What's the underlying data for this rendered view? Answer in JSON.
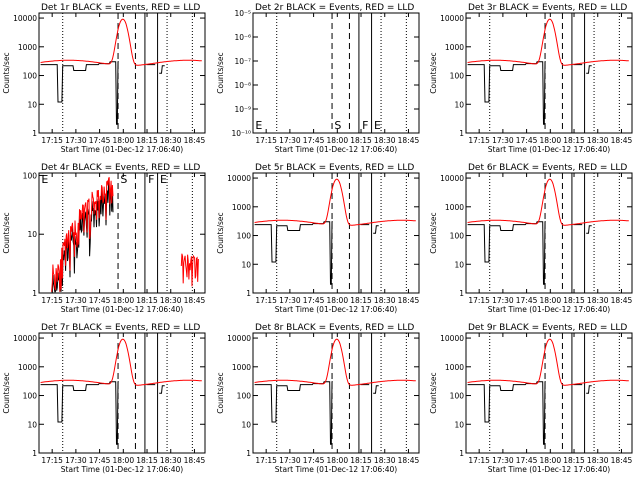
{
  "colors": {
    "events": "#000000",
    "lld": "#ff0000",
    "background": "#ffffff"
  },
  "chart_data": [
    {
      "type": "line",
      "title": "Det 1r BLACK = Events, RED = LLD",
      "xlabel": "Start Time (01-Dec-12 17:06:40)",
      "ylabel": "Counts/sec",
      "yscale": "log",
      "ylim": [
        1,
        15000
      ],
      "y_ticks": [
        "1",
        "10",
        "100",
        "1000",
        "10000"
      ],
      "x_ticks": [
        "17:15",
        "17:30",
        "17:45",
        "18:00",
        "18:15",
        "18:30",
        "18:45"
      ],
      "flags": [],
      "profile": "normal"
    },
    {
      "type": "line",
      "title": "Det 2r BLACK = Events, RED = LLD",
      "xlabel": "Start Time (01-Dec-12 17:06:40)",
      "ylabel": "Counts/sec",
      "yscale": "log",
      "ylim": [
        1e-10,
        1e-05
      ],
      "y_ticks": [
        "10⁻¹⁰",
        "10⁻⁹",
        "10⁻⁸",
        "10⁻⁷",
        "10⁻⁶",
        "10⁻⁵"
      ],
      "x_ticks": [
        "17:15",
        "17:30",
        "17:45",
        "18:00",
        "18:15",
        "18:30",
        "18:45"
      ],
      "flags": [
        "E",
        "S",
        "F",
        "E"
      ],
      "profile": "empty"
    },
    {
      "type": "line",
      "title": "Det 3r BLACK = Events, RED = LLD",
      "xlabel": "Start Time (01-Dec-12 17:06:40)",
      "ylabel": "Counts/sec",
      "yscale": "log",
      "ylim": [
        1,
        15000
      ],
      "y_ticks": [
        "1",
        "10",
        "100",
        "1000",
        "10000"
      ],
      "x_ticks": [
        "17:15",
        "17:30",
        "17:45",
        "18:00",
        "18:15",
        "18:30",
        "18:45"
      ],
      "flags": [],
      "profile": "normal"
    },
    {
      "type": "line",
      "title": "Det 4r BLACK = Events, RED = LLD",
      "xlabel": "Start Time (01-Dec-12 17:06:40)",
      "ylabel": "Counts/sec",
      "yscale": "log",
      "ylim": [
        1,
        110
      ],
      "y_ticks": [
        "1",
        "10",
        "100"
      ],
      "x_ticks": [
        "17:15",
        "17:30",
        "17:45",
        "18:00",
        "18:15",
        "18:30",
        "18:45"
      ],
      "flags": [
        "E",
        "S",
        "F",
        "E"
      ],
      "profile": "noisy"
    },
    {
      "type": "line",
      "title": "Det 5r BLACK = Events, RED = LLD",
      "xlabel": "Start Time (01-Dec-12 17:06:40)",
      "ylabel": "Counts/sec",
      "yscale": "log",
      "ylim": [
        1,
        15000
      ],
      "y_ticks": [
        "1",
        "10",
        "100",
        "1000",
        "10000"
      ],
      "x_ticks": [
        "17:15",
        "17:30",
        "17:45",
        "18:00",
        "18:15",
        "18:30",
        "18:45"
      ],
      "flags": [],
      "profile": "normal"
    },
    {
      "type": "line",
      "title": "Det 6r BLACK = Events, RED = LLD",
      "xlabel": "Start Time (01-Dec-12 17:06:40)",
      "ylabel": "Counts/sec",
      "yscale": "log",
      "ylim": [
        1,
        15000
      ],
      "y_ticks": [
        "1",
        "10",
        "100",
        "1000",
        "10000"
      ],
      "x_ticks": [
        "17:15",
        "17:30",
        "17:45",
        "18:00",
        "18:15",
        "18:30",
        "18:45"
      ],
      "flags": [],
      "profile": "normal"
    },
    {
      "type": "line",
      "title": "Det 7r BLACK = Events, RED = LLD",
      "xlabel": "Start Time (01-Dec-12 17:06:40)",
      "ylabel": "Counts/sec",
      "yscale": "log",
      "ylim": [
        1,
        15000
      ],
      "y_ticks": [
        "1",
        "10",
        "100",
        "1000",
        "10000"
      ],
      "x_ticks": [
        "17:15",
        "17:30",
        "17:45",
        "18:00",
        "18:15",
        "18:30",
        "18:45"
      ],
      "flags": [],
      "profile": "normal"
    },
    {
      "type": "line",
      "title": "Det 8r BLACK = Events, RED = LLD",
      "xlabel": "Start Time (01-Dec-12 17:06:40)",
      "ylabel": "Counts/sec",
      "yscale": "log",
      "ylim": [
        1,
        15000
      ],
      "y_ticks": [
        "1",
        "10",
        "100",
        "1000",
        "10000"
      ],
      "x_ticks": [
        "17:15",
        "17:30",
        "17:45",
        "18:00",
        "18:15",
        "18:30",
        "18:45"
      ],
      "flags": [],
      "profile": "normal"
    },
    {
      "type": "line",
      "title": "Det 9r BLACK = Events, RED = LLD",
      "xlabel": "Start Time (01-Dec-12 17:06:40)",
      "ylabel": "Counts/sec",
      "yscale": "log",
      "ylim": [
        1,
        15000
      ],
      "y_ticks": [
        "1",
        "10",
        "100",
        "1000",
        "10000"
      ],
      "x_ticks": [
        "17:15",
        "17:30",
        "17:45",
        "18:00",
        "18:15",
        "18:30",
        "18:45"
      ],
      "flags": [],
      "profile": "normal"
    }
  ]
}
